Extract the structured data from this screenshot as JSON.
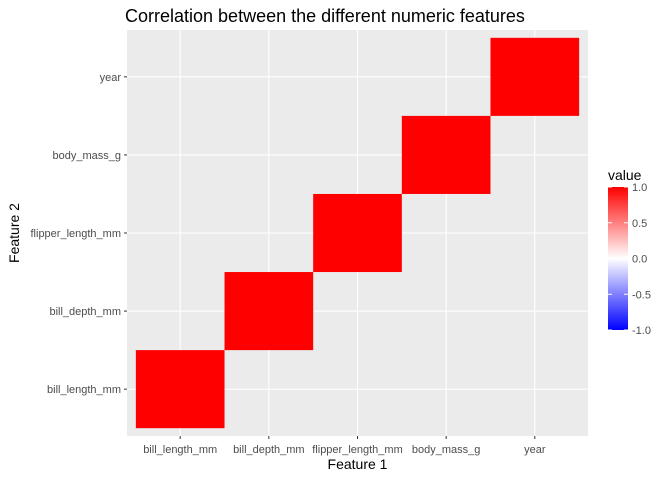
{
  "chart_data": {
    "type": "heatmap",
    "title": "Correlation between the different numeric features",
    "xlabel": "Feature 1",
    "ylabel": "Feature 2",
    "x_categories": [
      "bill_length_mm",
      "bill_depth_mm",
      "flipper_length_mm",
      "body_mass_g",
      "year"
    ],
    "y_categories": [
      "bill_length_mm",
      "bill_depth_mm",
      "flipper_length_mm",
      "body_mass_g",
      "year"
    ],
    "cells": [
      {
        "x": "bill_length_mm",
        "y": "bill_length_mm",
        "value": 1.0
      },
      {
        "x": "bill_depth_mm",
        "y": "bill_depth_mm",
        "value": 1.0
      },
      {
        "x": "flipper_length_mm",
        "y": "flipper_length_mm",
        "value": 1.0
      },
      {
        "x": "body_mass_g",
        "y": "body_mass_g",
        "value": 1.0
      },
      {
        "x": "year",
        "y": "year",
        "value": 1.0
      }
    ],
    "value_range": [
      -1.0,
      1.0
    ],
    "legend": {
      "title": "value",
      "position": "right",
      "ticks": [
        "1.0",
        "0.5",
        "0.0",
        "-0.5",
        "-1.0"
      ],
      "tick_values": [
        1.0,
        0.5,
        0.0,
        -0.5,
        -1.0
      ],
      "low_color": "#0000ff",
      "mid_color": "#ffffff",
      "high_color": "#ff0000"
    },
    "grid": true,
    "panel_color": "#ebebeb",
    "grid_color": "#ffffff"
  }
}
